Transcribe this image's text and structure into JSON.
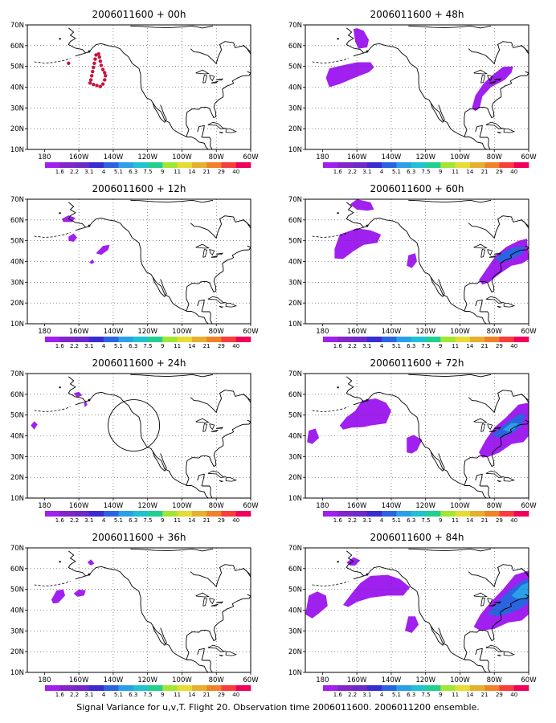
{
  "caption": "Signal Variance for u,v,T. Flight 20. Observation time 2006011600. 2006011200 ensemble.",
  "x_ticks": [
    "180",
    "160W",
    "140W",
    "120W",
    "100W",
    "80W",
    "60W"
  ],
  "y_ticks": [
    "70N",
    "60N",
    "50N",
    "40N",
    "30N",
    "20N",
    "10N"
  ],
  "colorbar": {
    "labels": [
      "1.6",
      "2.2",
      "3.1",
      "4",
      "5.1",
      "6.3",
      "7.5",
      "9",
      "11",
      "14",
      "21",
      "29",
      "40"
    ],
    "colors": [
      "#a020f0",
      "#8226c8",
      "#6e29c8",
      "#3a2bd2",
      "#2a64e0",
      "#2aa0e6",
      "#20c2d2",
      "#20d090",
      "#a0e632",
      "#e6dc32",
      "#e6af2e",
      "#f08228",
      "#fa3c3c",
      "#f0005a"
    ]
  },
  "colors": {
    "purple": "#a020f0",
    "blue": "#2a64e0",
    "cyan": "#2aa0e6",
    "dots": "#c8143c"
  },
  "panels": [
    {
      "id": "00",
      "title": "2006011600 + 00h"
    },
    {
      "id": "48",
      "title": "2006011600 + 48h"
    },
    {
      "id": "12",
      "title": "2006011600 + 12h"
    },
    {
      "id": "60",
      "title": "2006011600 + 60h"
    },
    {
      "id": "24",
      "title": "2006011600 + 24h"
    },
    {
      "id": "72",
      "title": "2006011600 + 72h"
    },
    {
      "id": "36",
      "title": "2006011600 + 36h"
    },
    {
      "id": "84",
      "title": "2006011600 + 84h"
    }
  ]
}
